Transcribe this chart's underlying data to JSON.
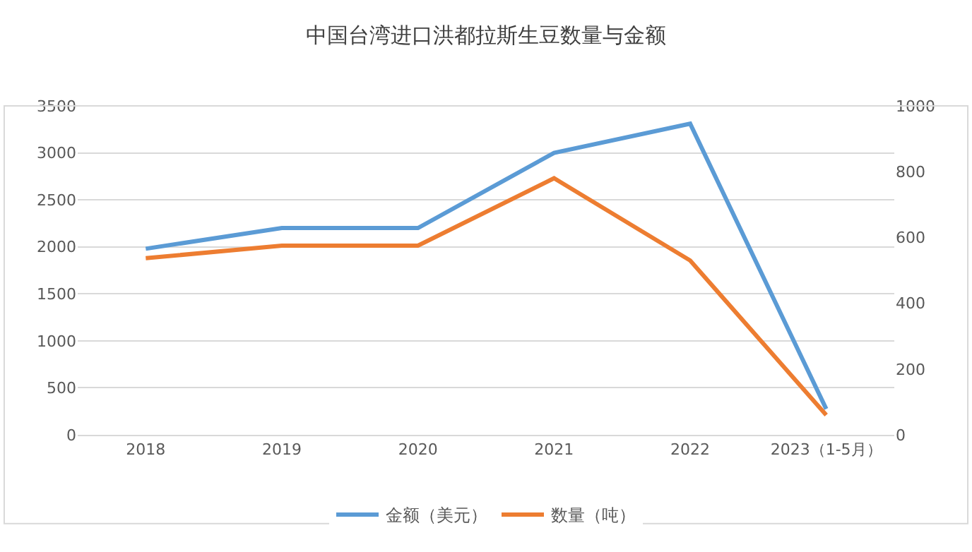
{
  "chart_data": {
    "type": "line",
    "title": "中国台湾进口洪都拉斯生豆数量与金额",
    "categories": [
      "2018",
      "2019",
      "2020",
      "2021",
      "2022",
      "2023（1-5月）"
    ],
    "series": [
      {
        "name": "金额（美元）",
        "color": "#5b9bd5",
        "values": [
          1980,
          2200,
          2200,
          3000,
          3310,
          275
        ]
      },
      {
        "name": "数量（吨）",
        "color": "#ed7d31",
        "axis": "y2",
        "values": [
          537,
          575,
          575,
          780,
          530,
          60
        ]
      }
    ],
    "ylim": [
      0,
      3500
    ],
    "yticks": [
      0,
      500,
      1000,
      1500,
      2000,
      2500,
      3000,
      3500
    ],
    "y2lim": [
      0,
      1000
    ],
    "y2ticks": [
      0,
      200,
      400,
      600,
      800,
      1000
    ],
    "grid": "y",
    "legend": "bottom",
    "marker": "none",
    "line_style": "solid"
  }
}
